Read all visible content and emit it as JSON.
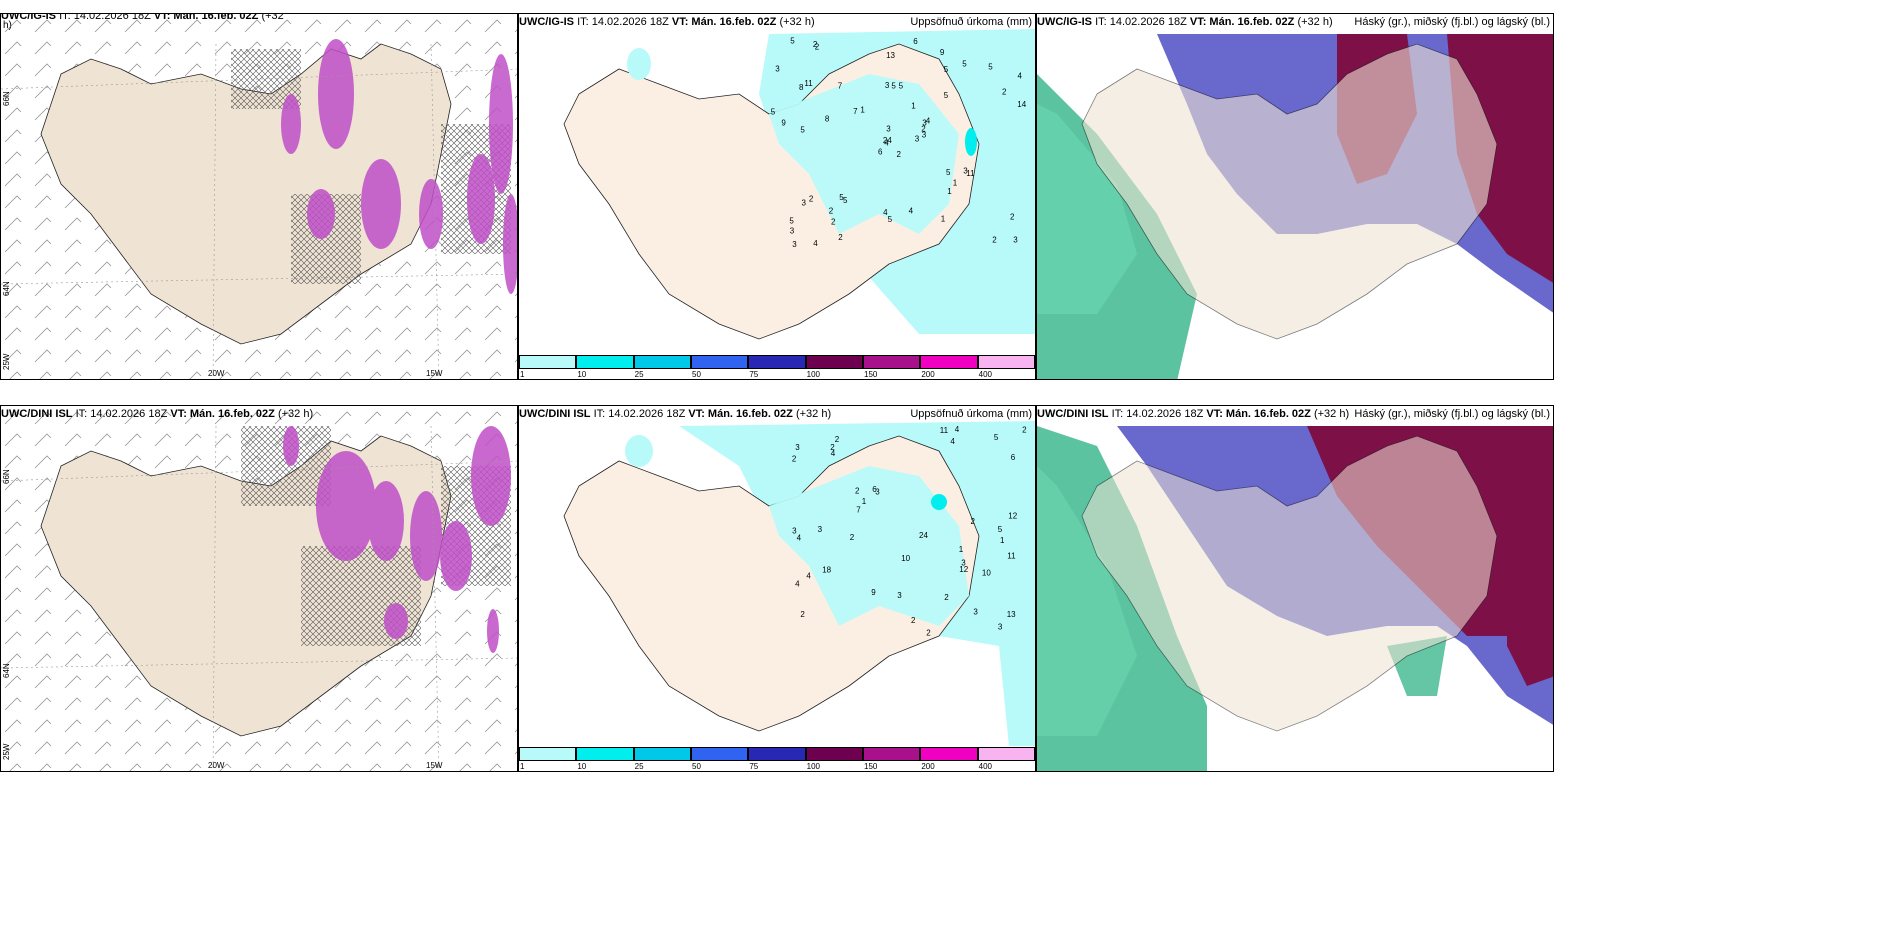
{
  "panels": [
    {
      "id": "p1",
      "title_prefix": "UWC/IG-IS",
      "title_it": "IT: 14.02.2026 18Z",
      "title_vt": "VT: Mán. 16.feb. 02Z",
      "title_lead": "(+32",
      "title_lead2": "h)",
      "right": ""
    },
    {
      "id": "p2",
      "title_prefix": "UWC/IG-IS",
      "title_it": "IT: 14.02.2026 18Z",
      "title_vt": "VT: Mán. 16.feb. 02Z",
      "title_lead": "(+32 h)",
      "right": "Uppsöfnuð úrkoma (mm)"
    },
    {
      "id": "p3",
      "title_prefix": "UWC/IG-IS",
      "title_it": "IT: 14.02.2026 18Z",
      "title_vt": "VT: Mán. 16.feb. 02Z",
      "title_lead": "(+32 h)",
      "right": "Háský (gr.), miðský (fj.bl.) og lágský (bl.)"
    },
    {
      "id": "p4",
      "title_prefix": "UWC/DINI ISL",
      "title_it": "IT: 14.02.2026 18Z",
      "title_vt": "VT: Mán. 16.feb. 02Z",
      "title_lead": "(+32 h)",
      "right": ""
    },
    {
      "id": "p5",
      "title_prefix": "UWC/DINI ISL",
      "title_it": "IT: 14.02.2026 18Z",
      "title_vt": "VT: Mán. 16.feb. 02Z",
      "title_lead": "(+32 h)",
      "right": "Uppsöfnuð úrkoma (mm)"
    },
    {
      "id": "p6",
      "title_prefix": "UWC/DINI ISL",
      "title_it": "IT: 14.02.2026 18Z",
      "title_vt": "VT: Mán. 16.feb. 02Z",
      "title_lead": "(+32 h)",
      "right": "Háský (gr.), miðský (fj.bl.) og lágský (bl.)"
    }
  ],
  "axis_labels": {
    "lat66": "66N",
    "lat64": "64N",
    "lat25w": "25W",
    "lon20": "20W",
    "lon15": "15W"
  },
  "colorbar": {
    "ticks": [
      "1",
      "10",
      "25",
      "50",
      "75",
      "100",
      "150",
      "200",
      "400"
    ],
    "colors": [
      "#b8fafa",
      "#00eeee",
      "#00c8e8",
      "#3064f0",
      "#2828b4",
      "#6e0050",
      "#a8108c",
      "#f000c0",
      "#f8b4f0"
    ]
  },
  "precip_values_top": [
    "2",
    "8",
    "4",
    "5",
    "3",
    "5",
    "9",
    "5",
    "5",
    "3",
    "2",
    "3",
    "5",
    "4",
    "6",
    "5",
    "4",
    "3",
    "1",
    "2",
    "1",
    "3",
    "2",
    "5",
    "4",
    "11",
    "11",
    "13",
    "9",
    "5",
    "14",
    "24",
    "4",
    "3",
    "7",
    "5",
    "5",
    "2",
    "2",
    "3",
    "6",
    "7",
    "8",
    "1",
    "2",
    "5",
    "2",
    "3",
    "5",
    "3",
    "3",
    "2",
    "3",
    "1",
    "1",
    "2",
    "2",
    "5",
    "4",
    "5"
  ],
  "precip_values_bottom": [
    "1",
    "1",
    "2",
    "2",
    "3",
    "3",
    "4",
    "4",
    "2",
    "2",
    "2",
    "3",
    "3",
    "13",
    "9",
    "12",
    "10",
    "24",
    "6",
    "18",
    "2",
    "5",
    "7",
    "11",
    "11",
    "2",
    "3",
    "4",
    "4",
    "2",
    "2",
    "2",
    "1",
    "2",
    "5",
    "10",
    "12",
    "3",
    "3",
    "4",
    "6",
    "4",
    "3"
  ]
}
